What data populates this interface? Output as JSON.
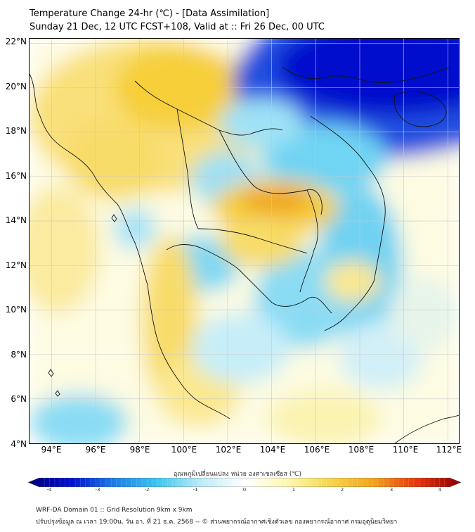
{
  "header": {
    "title_line1": "Temperature Change 24-hr (℃) - [Data Assimilation]",
    "title_line2": "Sunday 21 Dec, 12 UTC FCST+108, Valid at :: Fri 26 Dec, 00 UTC"
  },
  "map": {
    "lat_labels": [
      "22°N",
      "20°N",
      "18°N",
      "16°N",
      "14°N",
      "12°N",
      "10°N",
      "8°N",
      "6°N",
      "4°N"
    ],
    "lon_labels": [
      "94°E",
      "96°E",
      "98°E",
      "100°E",
      "102°E",
      "104°E",
      "106°E",
      "108°E",
      "110°E",
      "112°E"
    ],
    "lat_range": [
      4,
      22.2
    ],
    "lon_range": [
      93,
      112.5
    ],
    "grid": true,
    "colors": {
      "strong_cooling": "#0010d0",
      "cooling": "#3cc8f0",
      "neutral": "#fdfce0",
      "warming": "#f7d54a",
      "strong_warming": "#f2a21c",
      "border": "#111111",
      "grid": "#bbbbbb"
    }
  },
  "colorbar": {
    "title": "อุณหภูมิเปลี่ยนแปลง หน่วย องศาเซลเซียส (℃)",
    "ticks": [
      "-4",
      "-3",
      "-2",
      "-1",
      "0",
      "1",
      "2",
      "3",
      "4"
    ],
    "min": -4,
    "max": 4,
    "color_stops": [
      "#00007a",
      "#0010d0",
      "#1e7ee8",
      "#3cc8f0",
      "#bdecf7",
      "#ffffff",
      "#fdf8b0",
      "#f7d54a",
      "#f2a21c",
      "#e8300c",
      "#8a0000"
    ]
  },
  "footer": {
    "line1": "WRF-DA Domain 01 :: Grid Resolution 9km x 9km",
    "line2": "ปรับปรุงข้อมูล ณ เวลา 19:00น. วัน อา. ที่ 21 ธ.ค. 2568 -- © ส่วนพยากรณ์อากาศเชิงตัวเลข กองพยากรณ์อากาศ กรมอุตุนิยมวิทยา"
  }
}
